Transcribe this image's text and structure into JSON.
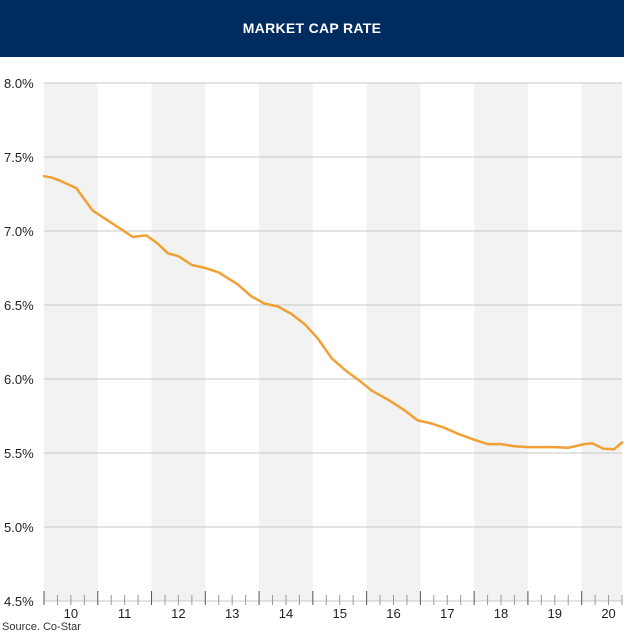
{
  "header": {
    "title": "MARKET CAP RATE"
  },
  "source": "Source. Co-Star",
  "colors": {
    "header_bg": "#002b5f",
    "line": "#f0a035",
    "grid": "#c8c8c8",
    "band": "#f2f2f2"
  },
  "chart_data": {
    "type": "line",
    "title": "MARKET CAP RATE",
    "xlabel": "",
    "ylabel": "",
    "ylim": [
      4.5,
      8.0
    ],
    "yticks": [
      "8.0%",
      "7.5%",
      "7.0%",
      "6.5%",
      "6.0%",
      "5.5%",
      "5.0%",
      "4.5%"
    ],
    "ytick_values": [
      8.0,
      7.5,
      7.0,
      6.5,
      6.0,
      5.5,
      5.0,
      4.5
    ],
    "categories": [
      "10",
      "11",
      "12",
      "13",
      "14",
      "15",
      "16",
      "17",
      "18",
      "19",
      "20"
    ],
    "xlim": [
      2010.0,
      2020.75
    ],
    "grid": true,
    "series": [
      {
        "x": [
          2010.0,
          2010.15,
          2010.3,
          2010.6,
          2010.9,
          2011.15,
          2011.4,
          2011.65,
          2011.9,
          2012.1,
          2012.3,
          2012.5,
          2012.75,
          2013.0,
          2013.25,
          2013.6,
          2013.85,
          2014.1,
          2014.35,
          2014.6,
          2014.85,
          2015.1,
          2015.35,
          2015.6,
          2015.9,
          2016.1,
          2016.4,
          2016.7,
          2016.95,
          2017.2,
          2017.45,
          2017.7,
          2018.0,
          2018.25,
          2018.5,
          2018.75,
          2019.0,
          2019.25,
          2019.5,
          2019.75,
          2020.05,
          2020.2,
          2020.4,
          2020.6,
          2020.75
        ],
        "values": [
          7.37,
          7.36,
          7.34,
          7.29,
          7.14,
          7.08,
          7.02,
          6.96,
          6.97,
          6.92,
          6.85,
          6.83,
          6.77,
          6.75,
          6.72,
          6.64,
          6.56,
          6.51,
          6.49,
          6.44,
          6.37,
          6.27,
          6.14,
          6.06,
          5.98,
          5.92,
          5.86,
          5.79,
          5.72,
          5.7,
          5.67,
          5.63,
          5.59,
          5.56,
          5.56,
          5.545,
          5.54,
          5.54,
          5.54,
          5.535,
          5.56,
          5.565,
          5.53,
          5.525,
          5.57
        ]
      }
    ]
  }
}
